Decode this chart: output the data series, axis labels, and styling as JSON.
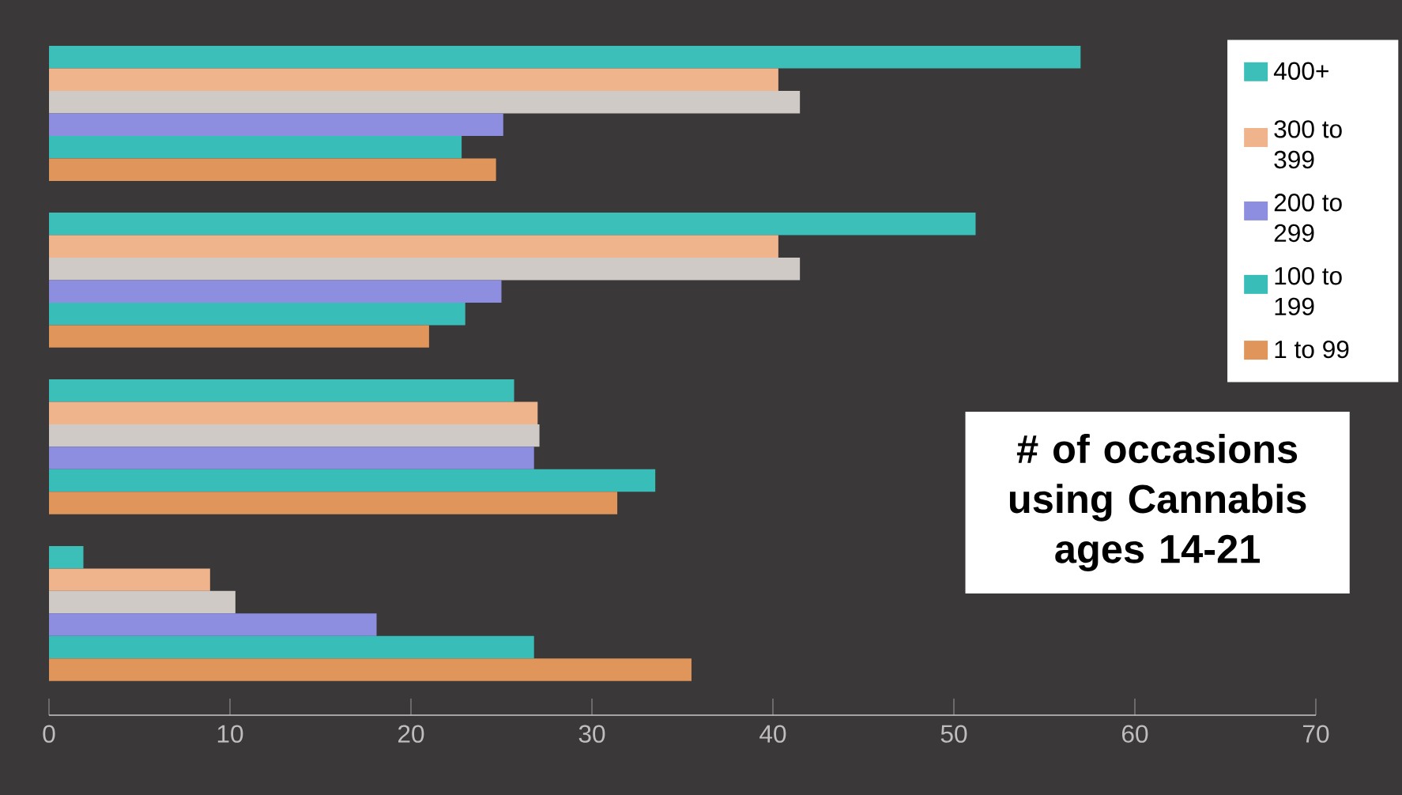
{
  "chart_data": {
    "type": "bar",
    "orientation": "horizontal",
    "title": "# of occasions using Cannabis ages 14-21",
    "categories": [
      null,
      null,
      null,
      null
    ],
    "series": [
      {
        "name": "400+",
        "color": "#3cbfb8",
        "values": [
          57,
          51.2,
          25.7,
          1.9
        ]
      },
      {
        "name": "300 to 399",
        "color": "#f0b48c",
        "values": [
          40.3,
          40.3,
          27,
          8.9
        ]
      },
      {
        "color": "#cfcac6",
        "values": [
          41.5,
          41.5,
          27.1,
          10.3
        ]
      },
      {
        "name": "200 to 299",
        "color": "#8e8ee0",
        "values": [
          25.1,
          25,
          26.8,
          18.1
        ]
      },
      {
        "name": "100 to 199",
        "color": "#38bdb8",
        "values": [
          22.8,
          23,
          33.5,
          26.8
        ]
      },
      {
        "name": "1 to 99",
        "color": "#e0955a",
        "values": [
          24.7,
          21,
          31.4,
          35.5
        ]
      }
    ],
    "xlim": [
      0,
      70
    ],
    "xticks": [
      0,
      10,
      20,
      30,
      40,
      50,
      60,
      70
    ],
    "legend": "top right"
  }
}
